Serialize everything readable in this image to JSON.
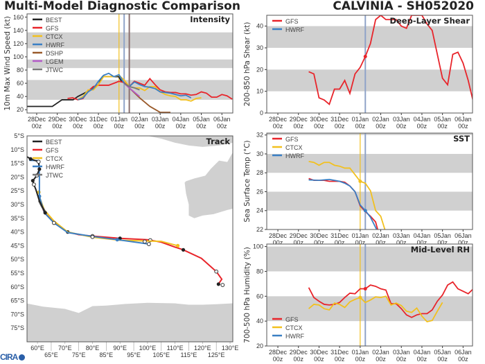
{
  "header": {
    "title": "Multi-Model Diagnostic Comparison",
    "storm": "CALVINIA - SH052020"
  },
  "logo": {
    "text": "CIRA"
  },
  "colors": {
    "BEST": "#222222",
    "GFS": "#e8242a",
    "CTCX": "#f2c01e",
    "HWRF": "#3a7fc4",
    "DSHP": "#9a5a2a",
    "LGEM": "#b35ac8",
    "JTWC": "#777777",
    "band": "#d0d0d0"
  },
  "xticks": [
    "28Dec\n00z",
    "29Dec\n00z",
    "30Dec\n00z",
    "31Dec\n00z",
    "01Jan\n00z",
    "02Jan\n00z",
    "03Jan\n00z",
    "04Jan\n00z",
    "05Jan\n00z",
    "06Jan\n00z"
  ],
  "chart_data": [
    {
      "id": "intensity",
      "type": "line",
      "title": "Intensity",
      "ylabel": "10m Max Wind Speed (kt)",
      "ylim": [
        15,
        165
      ],
      "yticks": [
        20,
        40,
        60,
        80,
        100,
        120,
        140,
        160
      ],
      "bands": [
        [
          35,
          65
        ],
        [
          83,
          96
        ],
        [
          113,
          137
        ]
      ],
      "vlines": [
        {
          "x": 4.0,
          "color": "#f2c01e"
        },
        {
          "x": 4.25,
          "color": "#8fa3c8"
        },
        {
          "x": 4.5,
          "color": "#8a7070"
        }
      ],
      "legend": [
        "BEST",
        "GFS",
        "CTCX",
        "HWRF",
        "DSHP",
        "LGEM",
        "JTWC"
      ],
      "series": [
        {
          "name": "BEST",
          "x": [
            -0.48,
            0.76,
            1.23,
            1.77,
            2,
            2.5,
            3,
            3.19,
            3.5,
            3.98,
            4.14
          ],
          "y": [
            25,
            25,
            35,
            35,
            40,
            48,
            58,
            70,
            70,
            70,
            62
          ]
        },
        {
          "name": "GFS",
          "x": [
            1.5,
            1.75,
            2,
            2.25,
            2.5,
            2.75,
            3,
            3.25,
            3.5,
            3.75,
            4,
            4.25,
            4.5,
            4.75,
            5,
            5.25,
            5.5,
            5.75,
            6,
            6.25,
            6.5,
            6.75,
            7,
            7.25,
            7.5,
            7.75,
            8,
            8.25,
            8.5,
            8.75,
            9,
            9.25,
            9.5
          ],
          "y": [
            37,
            38,
            35,
            37,
            48,
            55,
            57,
            57,
            57,
            60,
            63,
            61,
            55,
            63,
            60,
            57,
            67,
            58,
            50,
            47,
            46,
            46,
            44,
            44,
            42,
            43,
            47,
            45,
            39,
            39,
            43,
            41,
            36
          ]
        },
        {
          "name": "CTCX",
          "x": [
            2,
            2.25,
            2.5,
            2.75,
            3,
            3.25,
            3.5,
            3.75,
            4,
            4.25,
            4.5,
            4.75,
            5,
            5.25,
            5.5,
            5.75,
            6,
            6.25,
            6.5,
            6.75,
            7,
            7.25,
            7.5,
            7.75,
            8
          ],
          "y": [
            35,
            40,
            50,
            50,
            58,
            70,
            70,
            70,
            72,
            65,
            55,
            53,
            53,
            49,
            55,
            55,
            47,
            43,
            41,
            40,
            35,
            35,
            33,
            37,
            38
          ]
        },
        {
          "name": "HWRF",
          "x": [
            2,
            2.25,
            2.5,
            2.75,
            3,
            3.25,
            3.5,
            3.75,
            4,
            4.25,
            4.5,
            4.75,
            5,
            5.25,
            5.5,
            5.75,
            6,
            6.25,
            6.5,
            6.75,
            7,
            7.25,
            7.5
          ],
          "y": [
            35,
            38,
            47,
            52,
            63,
            72,
            75,
            70,
            73,
            60,
            55,
            62,
            58,
            55,
            54,
            52,
            47,
            46,
            45,
            43,
            41,
            42,
            38
          ]
        },
        {
          "name": "DSHP",
          "x": [
            4.25,
            4.5,
            5,
            5.5,
            6,
            6.5
          ],
          "y": [
            60,
            53,
            38,
            25,
            16,
            16
          ]
        },
        {
          "name": "LGEM",
          "x": [
            4.25,
            4.5,
            5
          ],
          "y": [
            60,
            53,
            40
          ]
        },
        {
          "name": "JTWC",
          "x": [
            4.25,
            4.5,
            4.75,
            5
          ],
          "y": [
            60,
            55,
            53,
            50
          ]
        }
      ]
    },
    {
      "id": "shear",
      "type": "line",
      "title": "Deep-Layer Shear",
      "ylabel": "200-850 hPa Shear (kt)",
      "ylim": [
        0,
        45
      ],
      "yticks": [
        0,
        10,
        20,
        30,
        40
      ],
      "bands": [
        [
          10,
          20
        ],
        [
          30,
          40
        ]
      ],
      "vlines": [
        {
          "x": 4.25,
          "color": "#8fa3c8"
        }
      ],
      "legend": [
        "GFS",
        "HWRF"
      ],
      "markers": [
        {
          "series": "GFS",
          "x": 4.25,
          "y": 26
        }
      ],
      "series": [
        {
          "name": "GFS",
          "x": [
            1.5,
            1.75,
            2,
            2.25,
            2.5,
            2.75,
            3,
            3.25,
            3.5,
            3.75,
            4,
            4.25,
            4.5,
            4.75,
            5,
            5.25,
            5.5,
            5.75,
            6,
            6.25,
            6.5,
            7,
            7.25,
            7.5,
            8,
            8.25,
            8.5,
            8.75,
            9,
            9.25,
            9.5
          ],
          "y": [
            19,
            18,
            7,
            6,
            4,
            11,
            11,
            15,
            9,
            18,
            21,
            26,
            32,
            43,
            45,
            43,
            43,
            43,
            40,
            39,
            45,
            45,
            41,
            38,
            16,
            13,
            27,
            28,
            23,
            15,
            5
          ]
        }
      ]
    },
    {
      "id": "sst",
      "type": "line",
      "title": "SST",
      "ylabel": "Sea Surface Temp (°C)",
      "ylim": [
        22,
        32.2
      ],
      "yticks": [
        22,
        24,
        26,
        28,
        30,
        32
      ],
      "bands": [
        [
          24,
          26
        ],
        [
          28,
          30
        ],
        [
          32,
          33
        ]
      ],
      "vlines": [
        {
          "x": 4.0,
          "color": "#f2c01e"
        },
        {
          "x": 4.25,
          "color": "#8fa3c8"
        }
      ],
      "legend": [
        "GFS",
        "CTCX",
        "HWRF"
      ],
      "markers": [
        {
          "series": "CTCX",
          "x": 4.0,
          "y": 27.1
        },
        {
          "series": "HWRF",
          "x": 4.25,
          "y": 24.0
        }
      ],
      "series": [
        {
          "name": "GFS",
          "x": [
            1.5,
            1.75,
            2,
            2.25,
            2.5,
            2.75,
            3,
            3.25,
            3.5,
            3.75,
            4,
            4.25,
            4.5,
            4.75,
            4.85
          ],
          "y": [
            27.4,
            27.2,
            27.2,
            27.2,
            27.1,
            27.1,
            27.1,
            27.0,
            26.6,
            26.0,
            24.5,
            23.9,
            23.4,
            22.8,
            22
          ]
        },
        {
          "name": "CTCX",
          "x": [
            1.5,
            1.75,
            2,
            2.25,
            2.5,
            2.75,
            3,
            3.25,
            3.5,
            3.75,
            4,
            4.25,
            4.5,
            4.75,
            5,
            5.2
          ],
          "y": [
            29.2,
            29.1,
            28.8,
            29.1,
            29.1,
            28.8,
            28.7,
            28.5,
            28.5,
            27.8,
            27.1,
            26.9,
            26.1,
            24.0,
            23.4,
            22
          ]
        },
        {
          "name": "HWRF",
          "x": [
            1.5,
            2,
            2.5,
            3,
            3.25,
            3.5,
            3.75,
            4,
            4.25,
            4.5,
            4.8
          ],
          "y": [
            27.25,
            27.2,
            27.3,
            27.1,
            26.9,
            26.6,
            26.0,
            24.6,
            24.0,
            23.3,
            22
          ]
        }
      ]
    },
    {
      "id": "rh",
      "type": "line",
      "title": "Mid-Level RH",
      "ylabel": "700-500 hPa Humidity (%)",
      "ylim": [
        20,
        102
      ],
      "yticks": [
        20,
        40,
        60,
        80,
        100
      ],
      "bands": [
        [
          40,
          60
        ],
        [
          80,
          100
        ]
      ],
      "vlines": [
        {
          "x": 4.0,
          "color": "#f2c01e"
        },
        {
          "x": 4.25,
          "color": "#8fa3c8"
        }
      ],
      "legend": [
        "GFS",
        "CTCX",
        "HWRF"
      ],
      "markers": [
        {
          "series": "GFS",
          "x": 4.25,
          "y": 66
        },
        {
          "series": "CTCX",
          "x": 4.0,
          "y": 59
        }
      ],
      "series": [
        {
          "name": "GFS",
          "x": [
            1.5,
            1.75,
            2,
            2.25,
            2.5,
            2.75,
            3,
            3.25,
            3.5,
            3.75,
            4,
            4.25,
            4.5,
            4.75,
            5,
            5.25,
            5.5,
            5.75,
            6,
            6.25,
            6.5,
            6.75,
            7,
            7.25,
            7.5,
            7.75,
            8,
            8.25,
            8.5,
            8.75,
            9,
            9.25,
            9.5
          ],
          "y": [
            67,
            59,
            56,
            53.5,
            53,
            53.5,
            55,
            59,
            62.5,
            62,
            66,
            66,
            69,
            68,
            66,
            65,
            54,
            54,
            50,
            45,
            43,
            45,
            46,
            46,
            49,
            56,
            61,
            69,
            71.5,
            66,
            64,
            62,
            66
          ]
        },
        {
          "name": "CTCX",
          "x": [
            1.5,
            1.75,
            2,
            2.25,
            2.5,
            2.75,
            3,
            3.25,
            3.5,
            3.75,
            4,
            4.25,
            4.5,
            4.75,
            5,
            5.25,
            5.5,
            5.75,
            6,
            6.25,
            6.5,
            6.75,
            7,
            7.25,
            7.5,
            7.75,
            8
          ],
          "y": [
            50,
            53.5,
            53,
            50,
            49,
            54.5,
            53.5,
            51,
            55.5,
            57.5,
            59,
            55,
            57,
            59.5,
            59,
            60,
            53,
            54.5,
            52.5,
            48,
            47,
            50.5,
            44,
            39.5,
            40.5,
            48,
            55
          ]
        }
      ]
    },
    {
      "id": "track",
      "type": "map",
      "title": "Track",
      "lonlim": [
        56.2,
        131
      ],
      "latlim": [
        -80,
        -5
      ],
      "yticks": [
        "5°S",
        "10°S",
        "15°S",
        "20°S",
        "25°S",
        "30°S",
        "35°S",
        "40°S",
        "45°S",
        "50°S",
        "55°S",
        "60°S",
        "65°S",
        "70°S",
        "75°S"
      ],
      "xticks": [
        "60°E",
        "65°E",
        "70°E",
        "75°E",
        "80°E",
        "85°E",
        "90°E",
        "95°E",
        "100°E",
        "105°E",
        "110°E",
        "115°E",
        "120°E",
        "125°E",
        "130°E"
      ],
      "legend": [
        "BEST",
        "GFS",
        "CTCX",
        "HWRF",
        "JTWC"
      ],
      "series": [
        {
          "name": "GFS",
          "lon": [
            60.3,
            61,
            62.5,
            66,
            71,
            75,
            80,
            90,
            100,
            105,
            110,
            113,
            119.6,
            125,
            127,
            125.6
          ],
          "lat": [
            -27.2,
            -29,
            -33,
            -36.5,
            -40,
            -41,
            -41.5,
            -42.3,
            -42.8,
            -43.7,
            -45.5,
            -46.5,
            -49.6,
            -54.4,
            -57.2,
            -59.2
          ],
          "filled": [
            [
              71,
              -40
            ],
            [
              90,
              -42.3
            ],
            [
              113,
              -46.5
            ],
            [
              125.8,
              -59
            ]
          ],
          "open": [
            [
              80,
              -41.5
            ],
            [
              101,
              -43
            ],
            [
              125,
              -54.4
            ],
            [
              127.3,
              -59.3
            ]
          ]
        },
        {
          "name": "CTCX",
          "lon": [
            60.5,
            61,
            62.5,
            66,
            71,
            80,
            90,
            100,
            105,
            111
          ],
          "lat": [
            -25.5,
            -28,
            -32,
            -36,
            -40,
            -41.9,
            -43,
            -43.3,
            -43.4,
            -45
          ],
          "filled": [
            [
              60.5,
              -25.5
            ],
            [
              111,
              -45
            ]
          ],
          "open": []
        },
        {
          "name": "HWRF",
          "lon": [
            57,
            60.5,
            60.7,
            60.7,
            62.5,
            66,
            71,
            80,
            89,
            100.5
          ],
          "lat": [
            -13.9,
            -14,
            -20,
            -27,
            -33,
            -36.7,
            -40.2,
            -41.6,
            -42.8,
            -44.4
          ],
          "filled": [
            [
              60.7,
              -27
            ],
            [
              89,
              -42.8
            ]
          ],
          "open": [
            [
              66,
              -36.7
            ],
            [
              80,
              -41.8
            ],
            [
              99,
              -43.5
            ],
            [
              100.5,
              -44.4
            ]
          ]
        },
        {
          "name": "JTWC",
          "lon": [
            60.5,
            61.5,
            63
          ],
          "lat": [
            -28.5,
            -30.5,
            -33
          ],
          "filled": [],
          "open": []
        },
        {
          "name": "BEST",
          "lon": [
            56.2,
            57.5,
            60.4,
            60.7,
            59.8,
            58.8,
            58.3,
            58.7,
            59.4,
            60.7,
            62.8
          ],
          "lat": [
            -12.6,
            -13.4,
            -14.4,
            -17.1,
            -19.4,
            -20.7,
            -21.3,
            -22.7,
            -24.5,
            -28.7,
            -33
          ],
          "filled": [
            [
              57.5,
              -13.4
            ],
            [
              60.7,
              -17.1
            ],
            [
              58.3,
              -21.3
            ],
            [
              62.8,
              -33
            ]
          ],
          "open": [
            [
              60.4,
              -14.4
            ],
            [
              59.8,
              -19.4
            ],
            [
              58.7,
              -22.7
            ]
          ]
        }
      ]
    }
  ]
}
